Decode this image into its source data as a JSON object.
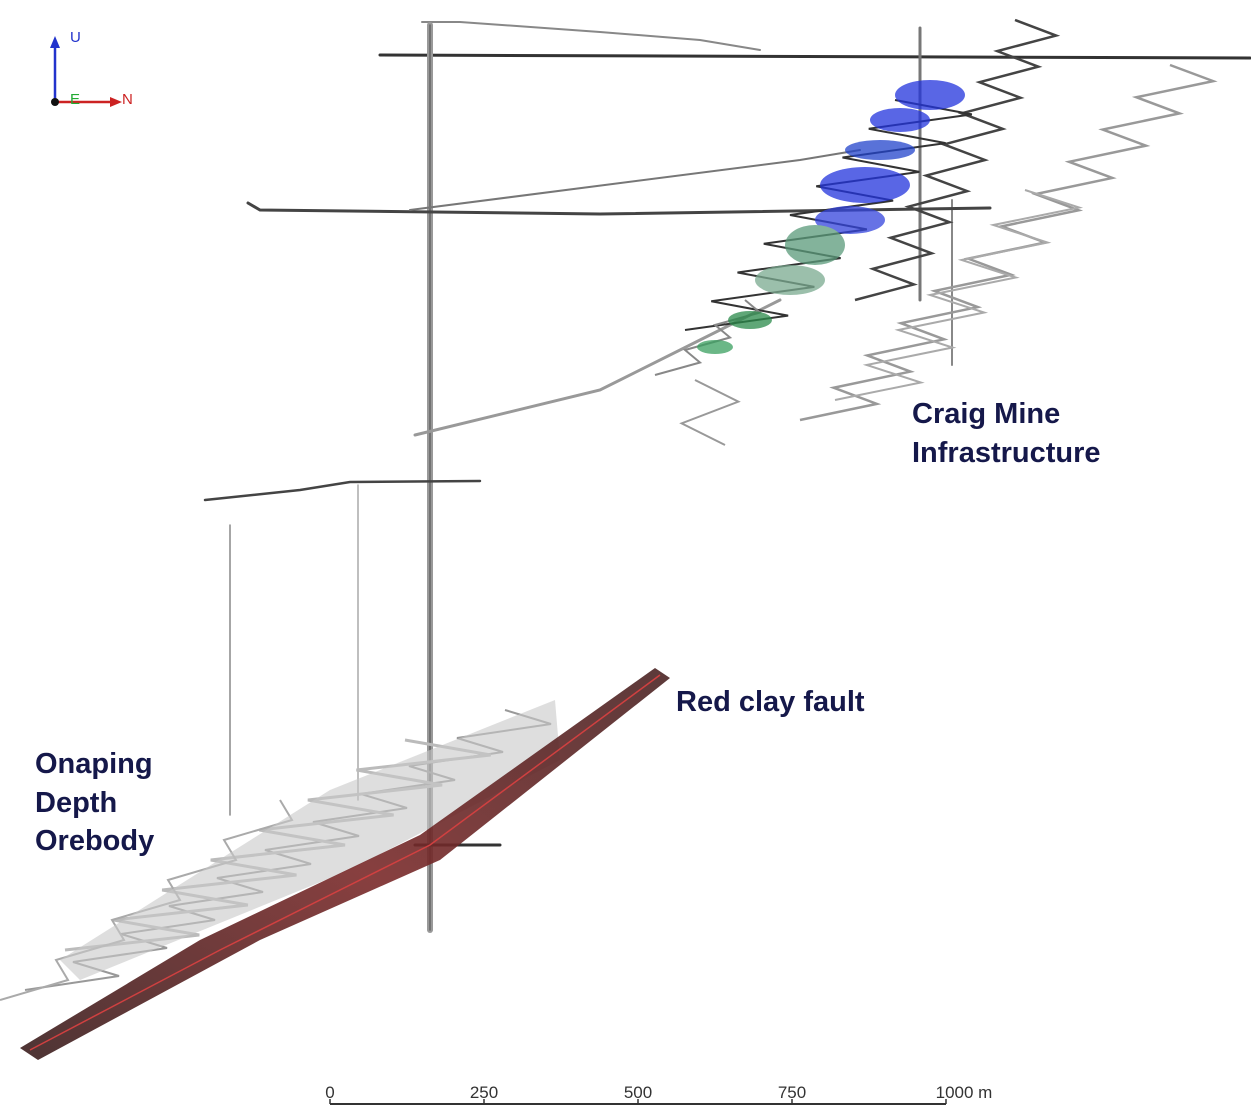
{
  "axes": {
    "up": "U",
    "east": "E",
    "north": "N"
  },
  "labels": {
    "craig": [
      "Craig Mine",
      "Infrastructure"
    ],
    "fault": [
      "Red clay fault"
    ],
    "onaping": [
      "Onaping",
      "Depth",
      "Orebody"
    ]
  },
  "scale_bar": {
    "labels": [
      "0",
      "250",
      "500",
      "750",
      "1000 m"
    ]
  }
}
